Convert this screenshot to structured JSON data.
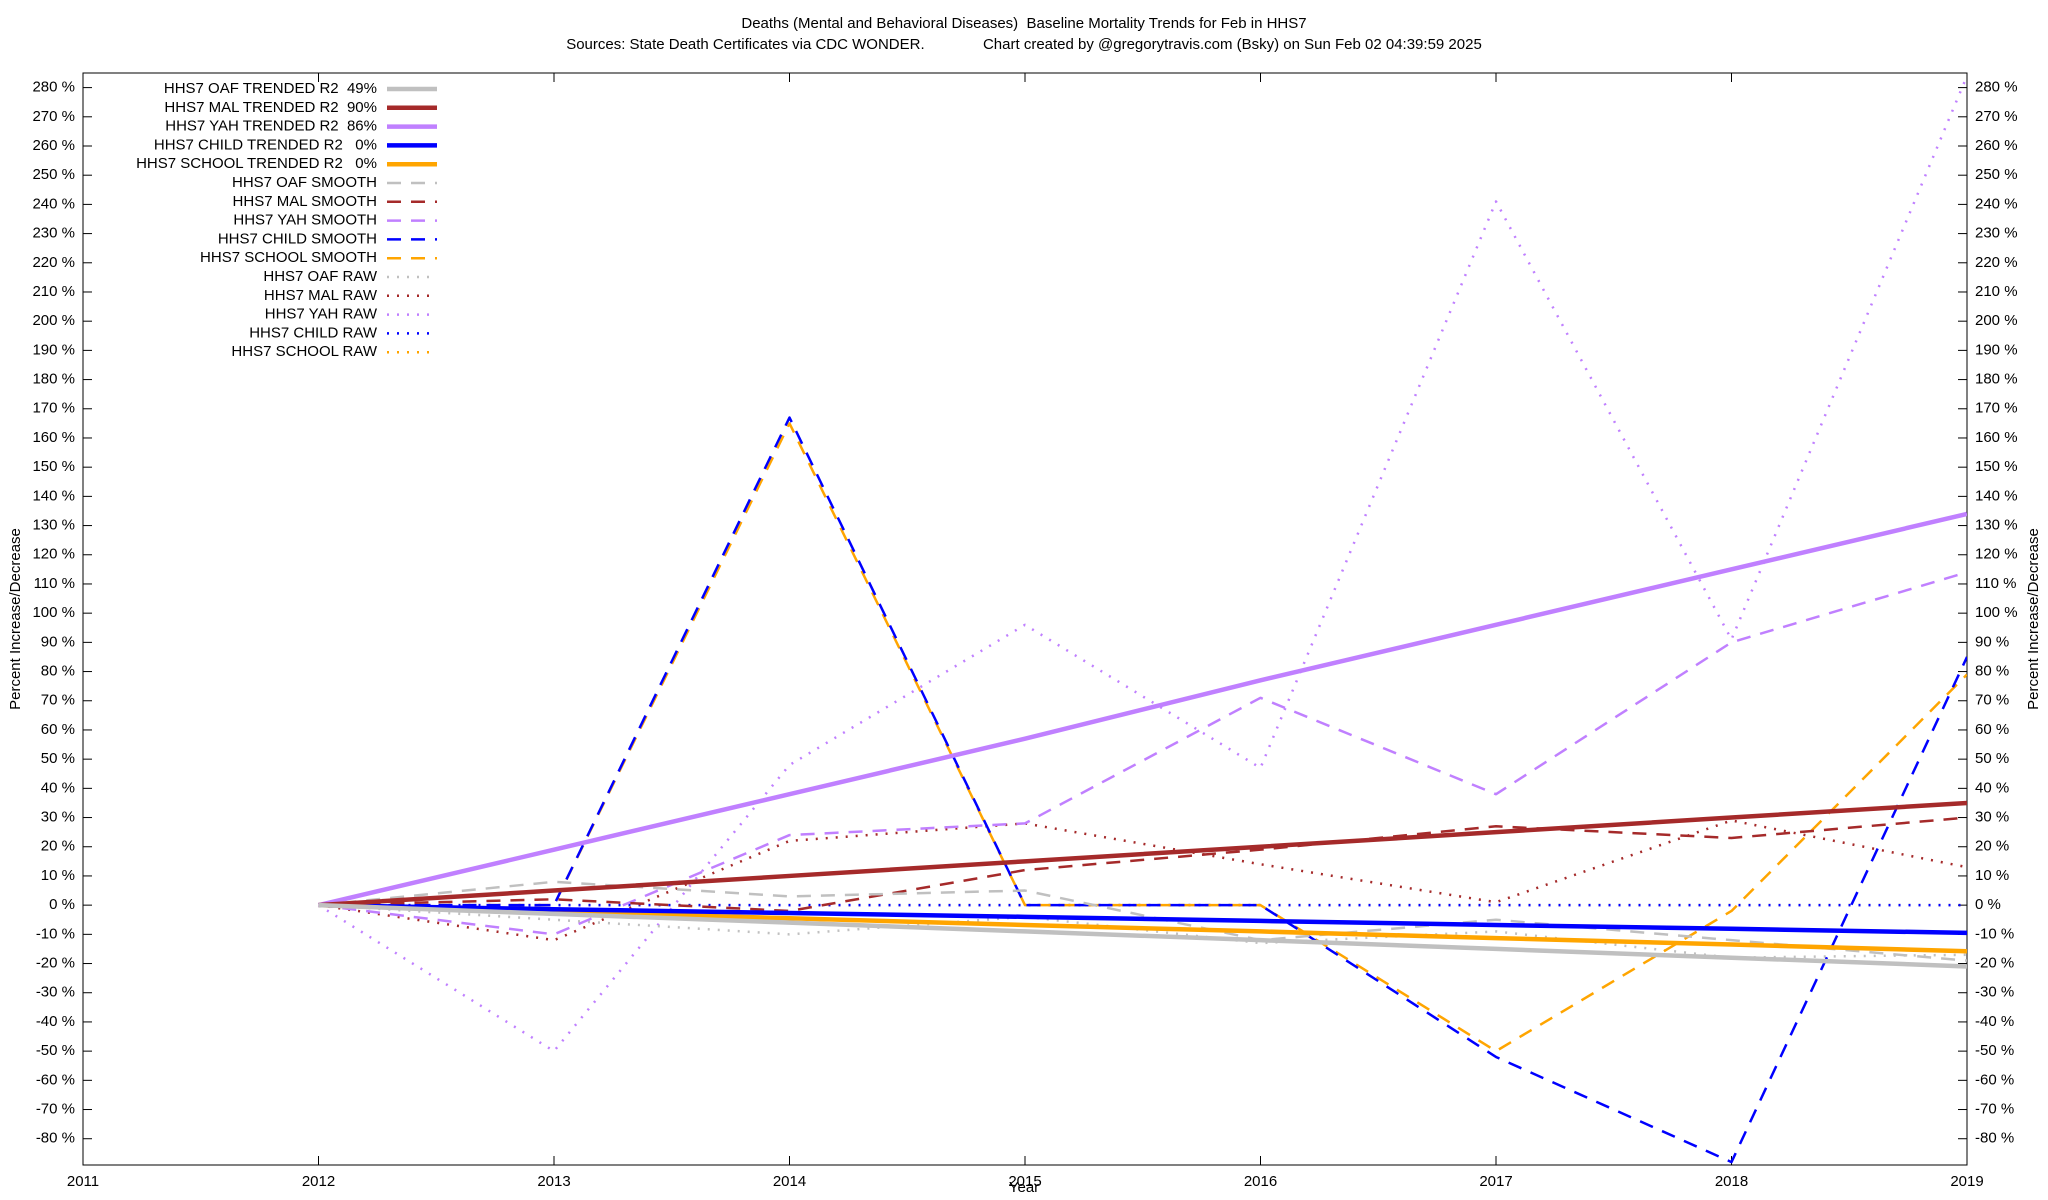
{
  "chart_data": {
    "type": "line",
    "title": "Deaths (Mental and Behavioral Diseases)  Baseline Mortality Trends for Feb in HHS7",
    "subtitle": "Sources: State Death Certificates via CDC WONDER.              Chart created by @gregorytravis.com (Bsky) on Sun Feb 02 04:39:59 2025",
    "xlabel": "Year",
    "ylabel": "Percent Increase/Decrease",
    "y2label": "Percent Increase/Decrease",
    "grid": false,
    "legend": "top-left",
    "xlim": [
      2011,
      2019
    ],
    "xticks": [
      2011,
      2012,
      2013,
      2014,
      2015,
      2016,
      2017,
      2018,
      2019
    ],
    "ylim": [
      -89,
      285
    ],
    "yticks": [
      {
        "value": 280,
        "label": "280 %"
      },
      {
        "value": 270,
        "label": "270 %"
      },
      {
        "value": 260,
        "label": "260 %"
      },
      {
        "value": 250,
        "label": "250 %"
      },
      {
        "value": 240,
        "label": "240 %"
      },
      {
        "value": 230,
        "label": "230 %"
      },
      {
        "value": 220,
        "label": "220 %"
      },
      {
        "value": 210,
        "label": "210 %"
      },
      {
        "value": 200,
        "label": "200 %"
      },
      {
        "value": 190,
        "label": "190 %"
      },
      {
        "value": 180,
        "label": "180 %"
      },
      {
        "value": 170,
        "label": "170 %"
      },
      {
        "value": 160,
        "label": "160 %"
      },
      {
        "value": 150,
        "label": "150 %"
      },
      {
        "value": 140,
        "label": "140 %"
      },
      {
        "value": 130,
        "label": "130 %"
      },
      {
        "value": 120,
        "label": "120 %"
      },
      {
        "value": 110,
        "label": "110 %"
      },
      {
        "value": 100,
        "label": "100 %"
      },
      {
        "value": 90,
        "label": "90 %"
      },
      {
        "value": 80,
        "label": "80 %"
      },
      {
        "value": 70,
        "label": "70 %"
      },
      {
        "value": 60,
        "label": "60 %"
      },
      {
        "value": 50,
        "label": "50 %"
      },
      {
        "value": 40,
        "label": "40 %"
      },
      {
        "value": 30,
        "label": "30 %"
      },
      {
        "value": 20,
        "label": "20 %"
      },
      {
        "value": 10,
        "label": "10 %"
      },
      {
        "value": 0,
        "label": "0 %"
      },
      {
        "value": -10,
        "label": "-10 %"
      },
      {
        "value": -20,
        "label": "-20 %"
      },
      {
        "value": -30,
        "label": "-30 %"
      },
      {
        "value": -40,
        "label": "-40 %"
      },
      {
        "value": -50,
        "label": "-50 %"
      },
      {
        "value": -60,
        "label": "-60 %"
      },
      {
        "value": -70,
        "label": "-70 %"
      },
      {
        "value": -80,
        "label": "-80 %"
      }
    ],
    "y2lim": [
      -89,
      285
    ],
    "y2ticks": [
      {
        "value": 280,
        "label": "280 %"
      },
      {
        "value": 270,
        "label": "270 %"
      },
      {
        "value": 260,
        "label": "260 %"
      },
      {
        "value": 250,
        "label": "250 %"
      },
      {
        "value": 240,
        "label": "240 %"
      },
      {
        "value": 230,
        "label": "230 %"
      },
      {
        "value": 220,
        "label": "220 %"
      },
      {
        "value": 210,
        "label": "210 %"
      },
      {
        "value": 200,
        "label": "200 %"
      },
      {
        "value": 190,
        "label": "190 %"
      },
      {
        "value": 180,
        "label": "180 %"
      },
      {
        "value": 170,
        "label": "170 %"
      },
      {
        "value": 160,
        "label": "160 %"
      },
      {
        "value": 150,
        "label": "150 %"
      },
      {
        "value": 140,
        "label": "140 %"
      },
      {
        "value": 130,
        "label": "130 %"
      },
      {
        "value": 120,
        "label": "120 %"
      },
      {
        "value": 110,
        "label": "110 %"
      },
      {
        "value": 100,
        "label": "100 %"
      },
      {
        "value": 90,
        "label": "90 %"
      },
      {
        "value": 80,
        "label": "80 %"
      },
      {
        "value": 70,
        "label": "70 %"
      },
      {
        "value": 60,
        "label": "60 %"
      },
      {
        "value": 50,
        "label": "50 %"
      },
      {
        "value": 40,
        "label": "40 %"
      },
      {
        "value": 30,
        "label": "30 %"
      },
      {
        "value": 20,
        "label": "20 %"
      },
      {
        "value": 10,
        "label": "10 %"
      },
      {
        "value": 0,
        "label": "0 %"
      },
      {
        "value": -10,
        "label": "-10 %"
      },
      {
        "value": -20,
        "label": "-20 %"
      },
      {
        "value": -30,
        "label": "-30 %"
      },
      {
        "value": -40,
        "label": "-40 %"
      },
      {
        "value": -50,
        "label": "-50 %"
      },
      {
        "value": -60,
        "label": "-60 %"
      },
      {
        "value": -70,
        "label": "-70 %"
      },
      {
        "value": -80,
        "label": "-80 %"
      }
    ],
    "x": [
      2012,
      2013,
      2014,
      2015,
      2016,
      2017,
      2018,
      2019
    ],
    "series": [
      {
        "name": "HHS7 OAF TRENDED R2  49%",
        "color": "#c0c0c0",
        "style": "solid",
        "values": [
          0,
          -3,
          -6,
          -9,
          -12,
          -15,
          -18,
          -21
        ]
      },
      {
        "name": "HHS7 MAL TRENDED R2  90%",
        "color": "#a52a2a",
        "style": "solid",
        "values": [
          0,
          5,
          10,
          15,
          20,
          25,
          30,
          35
        ]
      },
      {
        "name": "HHS7 YAH TRENDED R2  86%",
        "color": "#c080ff",
        "style": "solid",
        "values": [
          0,
          19,
          38,
          57,
          77,
          96,
          115,
          134
        ]
      },
      {
        "name": "HHS7 CHILD TRENDED R2   0%",
        "color": "#0000ff",
        "style": "solid",
        "values": [
          0,
          -1.4,
          -2.7,
          -4,
          -5.4,
          -6.8,
          -8.1,
          -9.5
        ]
      },
      {
        "name": "HHS7 SCHOOL TRENDED R2   0%",
        "color": "#ffa500",
        "style": "solid",
        "values": [
          0,
          -2.3,
          -4.5,
          -6.8,
          -9,
          -11.3,
          -13.5,
          -15.8
        ]
      },
      {
        "name": "HHS7 OAF SMOOTH",
        "color": "#c0c0c0",
        "style": "dashed",
        "values": [
          0,
          8,
          3,
          5,
          -12,
          -5,
          -12,
          -19
        ]
      },
      {
        "name": "HHS7 MAL SMOOTH",
        "color": "#a52a2a",
        "style": "dashed",
        "values": [
          0,
          2,
          -2,
          12,
          19,
          27,
          23,
          30
        ]
      },
      {
        "name": "HHS7 YAH SMOOTH",
        "color": "#c080ff",
        "style": "dashed",
        "values": [
          0,
          -10,
          24,
          28,
          71,
          38,
          90,
          114
        ]
      },
      {
        "name": "HHS7 CHILD SMOOTH",
        "color": "#0000ff",
        "style": "dashed",
        "values": [
          0,
          0,
          167,
          0,
          0,
          -52,
          -88,
          85
        ]
      },
      {
        "name": "HHS7 SCHOOL SMOOTH",
        "color": "#ffa500",
        "style": "dashed",
        "values": [
          0,
          0,
          165,
          0,
          0,
          -50,
          -2,
          79
        ]
      },
      {
        "name": "HHS7 OAF RAW",
        "color": "#c0c0c0",
        "style": "dotted",
        "values": [
          0,
          -5,
          -10,
          -4,
          -13,
          -9,
          -18,
          -17
        ]
      },
      {
        "name": "HHS7 MAL RAW",
        "color": "#a52a2a",
        "style": "dotted",
        "values": [
          0,
          -12,
          22,
          28,
          14,
          1,
          29,
          13
        ]
      },
      {
        "name": "HHS7 YAH RAW",
        "color": "#c080ff",
        "style": "dotted",
        "values": [
          0,
          -50,
          48,
          96,
          47,
          241,
          91,
          284
        ]
      },
      {
        "name": "HHS7 CHILD RAW",
        "color": "#0000ff",
        "style": "dotted",
        "values": [
          0,
          0,
          0,
          0,
          0,
          0,
          0,
          0
        ]
      },
      {
        "name": "HHS7 SCHOOL RAW",
        "color": "#ffa500",
        "style": "dotted",
        "values": [
          0,
          0,
          0,
          0,
          0,
          0,
          0,
          0
        ]
      }
    ]
  }
}
